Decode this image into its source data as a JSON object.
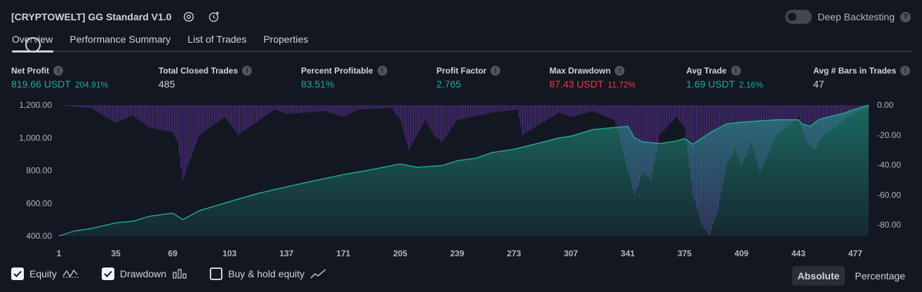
{
  "header": {
    "title": "[CRYPTOWELT] GG Standard V1.0",
    "deep_backtesting_label": "Deep Backtesting",
    "deep_backtesting_enabled": false
  },
  "tabs": [
    {
      "label": "Overview",
      "active": true
    },
    {
      "label": "Performance Summary",
      "active": false
    },
    {
      "label": "List of Trades",
      "active": false
    },
    {
      "label": "Properties",
      "active": false
    }
  ],
  "metrics": {
    "net_profit": {
      "label": "Net Profit",
      "value": "819.66 USDT",
      "sub": "204.91%"
    },
    "total_closed_trades": {
      "label": "Total Closed Trades",
      "value": "485"
    },
    "percent_profitable": {
      "label": "Percent Profitable",
      "value": "83.51%"
    },
    "profit_factor": {
      "label": "Profit Factor",
      "value": "2.765"
    },
    "max_drawdown": {
      "label": "Max Drawdown",
      "value": "87.43 USDT",
      "sub": "11.72%"
    },
    "avg_trade": {
      "label": "Avg Trade",
      "value": "1.69 USDT",
      "sub": "2.16%"
    },
    "avg_bars": {
      "label": "Avg # Bars in Trades",
      "value": "47"
    }
  },
  "chart_data": {
    "type": "area",
    "x_ticks": [
      "1",
      "35",
      "69",
      "103",
      "137",
      "171",
      "205",
      "239",
      "273",
      "307",
      "341",
      "375",
      "409",
      "443",
      "477"
    ],
    "left_axis": {
      "ticks": [
        "1,200.00",
        "1,000.00",
        "800.00",
        "600.00",
        "400.00"
      ],
      "range": [
        400,
        1200
      ]
    },
    "right_axis": {
      "ticks": [
        "0.00",
        "-20.00",
        "-40.00",
        "-60.00",
        "-80.00"
      ],
      "range": [
        0,
        -87.43
      ]
    },
    "equity_series": {
      "name": "Equity",
      "x": [
        1,
        10,
        20,
        35,
        45,
        55,
        69,
        75,
        85,
        103,
        120,
        137,
        150,
        171,
        185,
        205,
        215,
        230,
        239,
        250,
        260,
        273,
        285,
        300,
        307,
        320,
        335,
        341,
        345,
        350,
        360,
        370,
        375,
        380,
        390,
        400,
        409,
        415,
        430,
        443,
        445,
        450,
        455,
        460,
        470,
        477,
        485
      ],
      "y": [
        400,
        430,
        445,
        480,
        490,
        520,
        540,
        500,
        555,
        610,
        660,
        700,
        730,
        775,
        800,
        840,
        820,
        830,
        860,
        875,
        910,
        930,
        960,
        1000,
        1010,
        1050,
        1065,
        1070,
        1000,
        975,
        965,
        980,
        995,
        960,
        1030,
        1085,
        1095,
        1100,
        1110,
        1110,
        1085,
        1070,
        1110,
        1125,
        1150,
        1175,
        1200
      ]
    },
    "drawdown_series": {
      "name": "Drawdown",
      "x": [
        1,
        20,
        35,
        45,
        55,
        69,
        72,
        75,
        85,
        100,
        103,
        108,
        130,
        137,
        160,
        171,
        180,
        200,
        205,
        210,
        220,
        225,
        230,
        239,
        260,
        275,
        278,
        300,
        307,
        320,
        333,
        336,
        340,
        345,
        350,
        355,
        360,
        370,
        375,
        380,
        385,
        390,
        395,
        400,
        405,
        409,
        415,
        420,
        430,
        443,
        448,
        453,
        458,
        465,
        470,
        477,
        485
      ],
      "y": [
        0,
        -2,
        -12,
        -7,
        -15,
        -18,
        -25,
        -50,
        -20,
        -8,
        -12,
        -20,
        -3,
        -6,
        -4,
        -8,
        -3,
        -2,
        -10,
        -30,
        -10,
        -20,
        -25,
        -10,
        -5,
        -3,
        -20,
        -5,
        -8,
        -4,
        -10,
        -20,
        -40,
        -60,
        -45,
        -50,
        -20,
        -8,
        -15,
        -60,
        -80,
        -87,
        -70,
        -40,
        -30,
        -40,
        -25,
        -45,
        -20,
        -8,
        -25,
        -30,
        -20,
        -15,
        -10,
        -5,
        -2
      ]
    },
    "legend": [
      {
        "label": "Equity",
        "checked": true
      },
      {
        "label": "Drawdown",
        "checked": true
      },
      {
        "label": "Buy & hold equity",
        "checked": false
      }
    ],
    "modes": [
      {
        "label": "Absolute",
        "selected": true
      },
      {
        "label": "Percentage",
        "selected": false
      }
    ],
    "colors": {
      "equity_line": "#22ab94",
      "equity_fill": "#1f4e4a",
      "drawdown": "#7b3fc4",
      "background": "#131722"
    }
  }
}
